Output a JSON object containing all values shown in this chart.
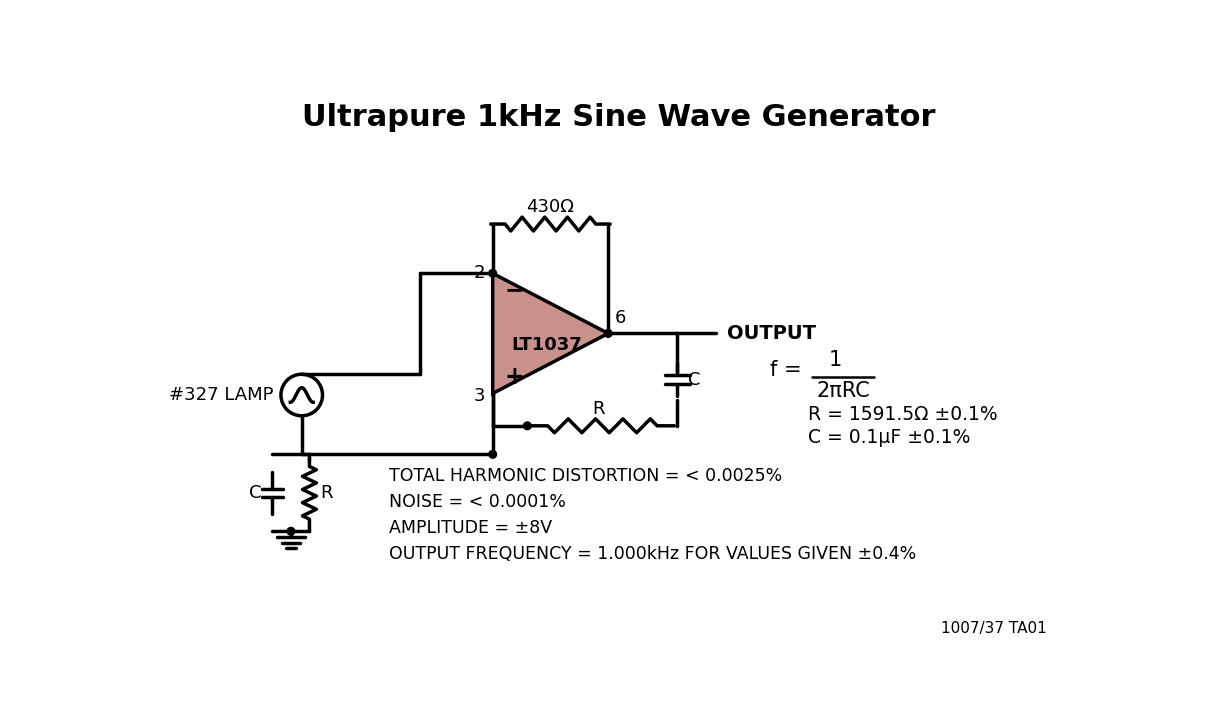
{
  "title": "Ultrapure 1kHz Sine Wave Generator",
  "title_fontsize": 22,
  "title_fontweight": "bold",
  "bg_color": "#ffffff",
  "line_color": "#000000",
  "op_amp_fill": "#c8918c",
  "op_amp_label": "LT1037",
  "resistor_top_label": "430Ω",
  "minus_label": "−",
  "plus_label": "+",
  "output_label": "OUTPUT",
  "lamp_label": "#327 LAMP",
  "R_label": "R",
  "C_label": "C",
  "formula_num": "1",
  "formula_den": "2πRC",
  "R_value": "R = 1591.5Ω ±0.1%",
  "C_value": "C = 0.1μF ±0.1%",
  "thd": "TOTAL HARMONIC DISTORTION = < 0.0025%",
  "noise": "NOISE = < 0.0001%",
  "amplitude": "AMPLITUDE = ±8V",
  "freq": "OUTPUT FREQUENCY = 1.000kHz FOR VALUES GIVEN ±0.4%",
  "footnote": "1007/37 TA01"
}
